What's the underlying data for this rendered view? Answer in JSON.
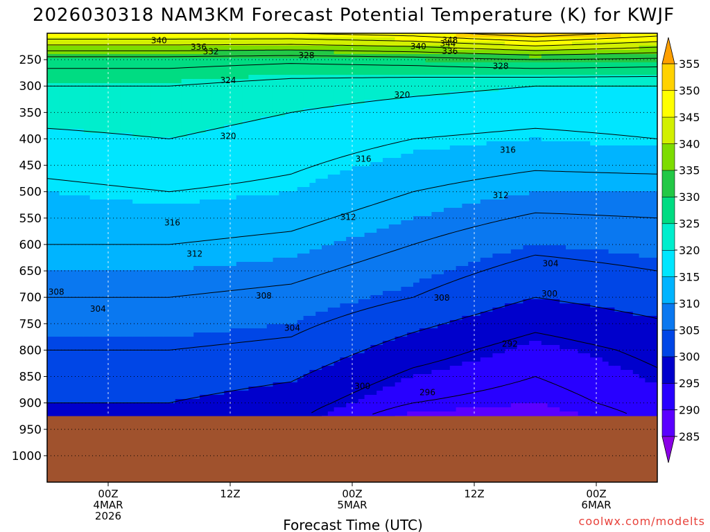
{
  "chart_data": {
    "type": "heatmap",
    "title": "2026030318 NAM3KM Forecast Potential Temperature (K) for KWJF",
    "xlabel": "Forecast Time (UTC)",
    "ylabel": "",
    "credit": "coolwx.com/modelts",
    "x_unit": "hours after 2026-03-03 18Z",
    "x_range": [
      0,
      60
    ],
    "y_unit": "hPa",
    "y_range": [
      200,
      1050
    ],
    "x_ticks": [
      {
        "t": 6,
        "lines": [
          "00Z",
          "4MAR",
          "2026"
        ]
      },
      {
        "t": 18,
        "lines": [
          "12Z"
        ]
      },
      {
        "t": 30,
        "lines": [
          "00Z",
          "5MAR"
        ]
      },
      {
        "t": 42,
        "lines": [
          "12Z"
        ]
      },
      {
        "t": 54,
        "lines": [
          "00Z",
          "6MAR"
        ]
      }
    ],
    "y_ticks": [
      250,
      300,
      350,
      400,
      450,
      500,
      550,
      600,
      650,
      700,
      750,
      800,
      850,
      900,
      950,
      1000
    ],
    "surface_pressure_hpa": 925,
    "colorbar": {
      "levels": [
        285,
        290,
        295,
        300,
        305,
        310,
        315,
        320,
        325,
        330,
        335,
        340,
        345,
        350,
        355
      ],
      "colors": [
        "#8a00e6",
        "#5a00ff",
        "#2800ff",
        "#0000cc",
        "#0046e6",
        "#0a78f0",
        "#00b4ff",
        "#00e6ff",
        "#00eecd",
        "#00dc82",
        "#23c846",
        "#7ddc00",
        "#d2f000",
        "#ffff00",
        "#ffd200",
        "#ffa000"
      ]
    },
    "theta_profiles": [
      {
        "t": 0,
        "levels": [
          [
            200,
            348
          ],
          [
            250,
            330
          ],
          [
            300,
            324
          ],
          [
            400,
            319
          ],
          [
            500,
            315
          ],
          [
            600,
            312
          ],
          [
            700,
            308
          ],
          [
            800,
            304
          ],
          [
            900,
            300
          ],
          [
            925,
            299
          ]
        ]
      },
      {
        "t": 12,
        "levels": [
          [
            200,
            348
          ],
          [
            250,
            330
          ],
          [
            300,
            324
          ],
          [
            400,
            320
          ],
          [
            500,
            316
          ],
          [
            600,
            312
          ],
          [
            700,
            308
          ],
          [
            800,
            304
          ],
          [
            900,
            300
          ],
          [
            925,
            299
          ]
        ]
      },
      {
        "t": 24,
        "levels": [
          [
            200,
            348
          ],
          [
            250,
            329
          ],
          [
            300,
            322
          ],
          [
            400,
            318
          ],
          [
            500,
            315
          ],
          [
            600,
            311
          ],
          [
            700,
            307
          ],
          [
            800,
            303
          ],
          [
            900,
            298
          ],
          [
            925,
            297
          ]
        ]
      },
      {
        "t": 36,
        "levels": [
          [
            200,
            350
          ],
          [
            250,
            330
          ],
          [
            300,
            321
          ],
          [
            400,
            316
          ],
          [
            500,
            312
          ],
          [
            600,
            308
          ],
          [
            700,
            304
          ],
          [
            800,
            298
          ],
          [
            900,
            292
          ],
          [
            925,
            289
          ]
        ]
      },
      {
        "t": 48,
        "levels": [
          [
            200,
            355
          ],
          [
            250,
            332
          ],
          [
            300,
            320
          ],
          [
            400,
            315
          ],
          [
            500,
            310
          ],
          [
            600,
            305
          ],
          [
            700,
            300
          ],
          [
            800,
            294
          ],
          [
            900,
            290
          ],
          [
            925,
            288
          ]
        ]
      },
      {
        "t": 60,
        "levels": [
          [
            200,
            350
          ],
          [
            250,
            331
          ],
          [
            300,
            320
          ],
          [
            400,
            316
          ],
          [
            500,
            310
          ],
          [
            600,
            306
          ],
          [
            700,
            302
          ],
          [
            800,
            297
          ],
          [
            900,
            294
          ],
          [
            925,
            293
          ]
        ]
      }
    ],
    "contour_labels": [
      {
        "value": "340",
        "t": 11.0,
        "p": 214
      },
      {
        "value": "336",
        "t": 14.9,
        "p": 226
      },
      {
        "value": "332",
        "t": 16.1,
        "p": 235
      },
      {
        "value": "328",
        "t": 25.5,
        "p": 242
      },
      {
        "value": "324",
        "t": 17.8,
        "p": 289
      },
      {
        "value": "320",
        "t": 17.8,
        "p": 395
      },
      {
        "value": "316",
        "t": 12.3,
        "p": 559
      },
      {
        "value": "312",
        "t": 14.5,
        "p": 618
      },
      {
        "value": "308",
        "t": 0.9,
        "p": 690
      },
      {
        "value": "304",
        "t": 5.0,
        "p": 722
      },
      {
        "value": "308",
        "t": 21.3,
        "p": 697
      },
      {
        "value": "304",
        "t": 24.1,
        "p": 758
      },
      {
        "value": "316",
        "t": 31.1,
        "p": 438
      },
      {
        "value": "312",
        "t": 29.6,
        "p": 548
      },
      {
        "value": "300",
        "t": 31.0,
        "p": 868
      },
      {
        "value": "296",
        "t": 37.4,
        "p": 880
      },
      {
        "value": "308",
        "t": 38.8,
        "p": 701
      },
      {
        "value": "348",
        "t": 39.6,
        "p": 213
      },
      {
        "value": "344",
        "t": 39.4,
        "p": 220
      },
      {
        "value": "340",
        "t": 36.5,
        "p": 225
      },
      {
        "value": "336",
        "t": 39.6,
        "p": 234
      },
      {
        "value": "320",
        "t": 34.9,
        "p": 317
      },
      {
        "value": "328",
        "t": 44.6,
        "p": 262
      },
      {
        "value": "316",
        "t": 45.3,
        "p": 421
      },
      {
        "value": "312",
        "t": 44.6,
        "p": 507
      },
      {
        "value": "304",
        "t": 49.5,
        "p": 636
      },
      {
        "value": "300",
        "t": 49.4,
        "p": 693
      },
      {
        "value": "292",
        "t": 45.5,
        "p": 788
      }
    ]
  }
}
